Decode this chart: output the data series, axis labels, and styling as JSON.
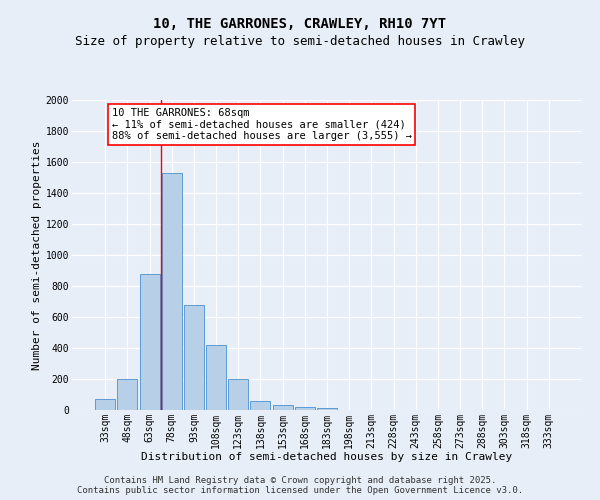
{
  "title": "10, THE GARRONES, CRAWLEY, RH10 7YT",
  "subtitle": "Size of property relative to semi-detached houses in Crawley",
  "xlabel": "Distribution of semi-detached houses by size in Crawley",
  "ylabel": "Number of semi-detached properties",
  "bar_labels": [
    "33sqm",
    "48sqm",
    "63sqm",
    "78sqm",
    "93sqm",
    "108sqm",
    "123sqm",
    "138sqm",
    "153sqm",
    "168sqm",
    "183sqm",
    "198sqm",
    "213sqm",
    "228sqm",
    "243sqm",
    "258sqm",
    "273sqm",
    "288sqm",
    "303sqm",
    "318sqm",
    "333sqm"
  ],
  "bar_values": [
    70,
    200,
    875,
    1530,
    680,
    420,
    200,
    60,
    30,
    20,
    15,
    0,
    0,
    0,
    0,
    0,
    0,
    0,
    0,
    0,
    0
  ],
  "bar_color": "#b8cfe8",
  "bar_edge_color": "#5b9bd5",
  "background_color": "#e8eef8",
  "grid_color": "#ffffff",
  "vline_x_idx": 2.5,
  "vline_color": "red",
  "annotation_text": "10 THE GARRONES: 68sqm\n← 11% of semi-detached houses are smaller (424)\n88% of semi-detached houses are larger (3,555) →",
  "annotation_box_color": "white",
  "annotation_box_edge": "red",
  "ylim": [
    0,
    2000
  ],
  "yticks": [
    0,
    200,
    400,
    600,
    800,
    1000,
    1200,
    1400,
    1600,
    1800,
    2000
  ],
  "footer_line1": "Contains HM Land Registry data © Crown copyright and database right 2025.",
  "footer_line2": "Contains public sector information licensed under the Open Government Licence v3.0.",
  "title_fontsize": 10,
  "subtitle_fontsize": 9,
  "axis_label_fontsize": 8,
  "tick_fontsize": 7,
  "annotation_fontsize": 7.5,
  "footer_fontsize": 6.5
}
